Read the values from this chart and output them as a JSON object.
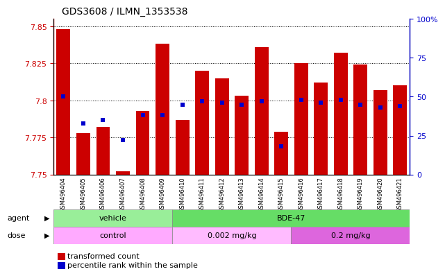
{
  "title": "GDS3608 / ILMN_1353538",
  "samples": [
    "GSM496404",
    "GSM496405",
    "GSM496406",
    "GSM496407",
    "GSM496408",
    "GSM496409",
    "GSM496410",
    "GSM496411",
    "GSM496412",
    "GSM496413",
    "GSM496414",
    "GSM496415",
    "GSM496416",
    "GSM496417",
    "GSM496418",
    "GSM496419",
    "GSM496420",
    "GSM496421"
  ],
  "transformed_count": [
    7.848,
    7.778,
    7.782,
    7.752,
    7.793,
    7.838,
    7.787,
    7.82,
    7.815,
    7.803,
    7.836,
    7.779,
    7.825,
    7.812,
    7.832,
    7.824,
    7.807,
    7.81
  ],
  "percentile_rank": [
    50,
    33,
    35,
    22,
    38,
    38,
    45,
    47,
    46,
    45,
    47,
    18,
    48,
    46,
    48,
    45,
    43,
    44
  ],
  "ymin": 7.75,
  "ymax": 7.855,
  "yticks": [
    7.75,
    7.775,
    7.8,
    7.825,
    7.85
  ],
  "ytick_labels": [
    "7.75",
    "7.775",
    "7.8",
    "7.825",
    "7.85"
  ],
  "y2min": 0,
  "y2max": 100,
  "y2ticks": [
    0,
    25,
    50,
    75,
    100
  ],
  "y2tick_labels": [
    "0",
    "25",
    "50",
    "75",
    "100%"
  ],
  "bar_color": "#cc0000",
  "dot_color": "#0000cc",
  "agent_groups": [
    {
      "label": "vehicle",
      "start": 0,
      "end": 6,
      "color": "#99ee99"
    },
    {
      "label": "BDE-47",
      "start": 6,
      "end": 18,
      "color": "#66dd66"
    }
  ],
  "dose_groups": [
    {
      "label": "control",
      "start": 0,
      "end": 6,
      "color": "#ffaaff"
    },
    {
      "label": "0.002 mg/kg",
      "start": 6,
      "end": 12,
      "color": "#ffbbff"
    },
    {
      "label": "0.2 mg/kg",
      "start": 12,
      "end": 18,
      "color": "#dd66dd"
    }
  ],
  "legend_items": [
    {
      "color": "#cc0000",
      "label": "transformed count"
    },
    {
      "color": "#0000cc",
      "label": "percentile rank within the sample"
    }
  ],
  "title_fontsize": 10,
  "axis_color_left": "#cc0000",
  "axis_color_right": "#0000cc",
  "xtick_bg": "#d8d8d8",
  "plot_bg": "#ffffff",
  "agent_label": "agent",
  "dose_label": "dose"
}
